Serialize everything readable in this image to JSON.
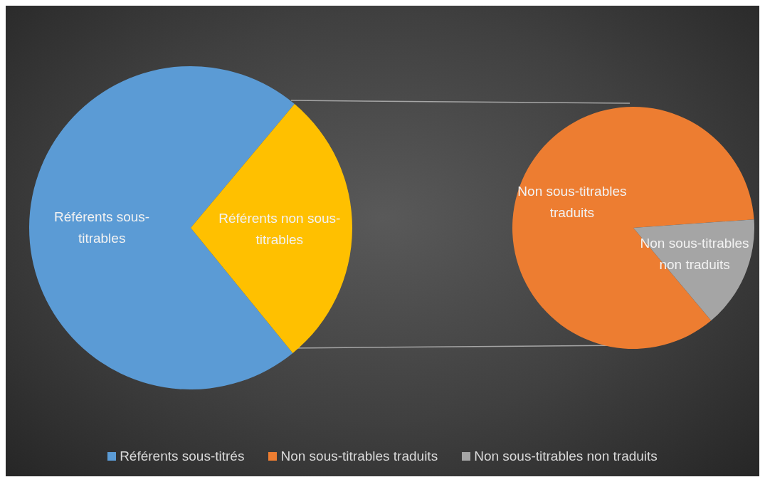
{
  "chart_data": [
    {
      "type": "pie",
      "categories": [
        "Référents sous-titrables",
        "Référents non sous-titrables"
      ],
      "values": [
        72,
        28
      ],
      "colors": [
        "#5b9bd5",
        "#ffc000"
      ],
      "annotations": [
        "Référents sous-titrés"
      ]
    },
    {
      "type": "pie",
      "categories": [
        "Non sous-titrables traduits",
        "Non sous-titrables non traduits"
      ],
      "values": [
        85,
        15
      ],
      "colors": [
        "#ed7d31",
        "#a5a5a5"
      ],
      "legend": "bottom"
    }
  ]
}
